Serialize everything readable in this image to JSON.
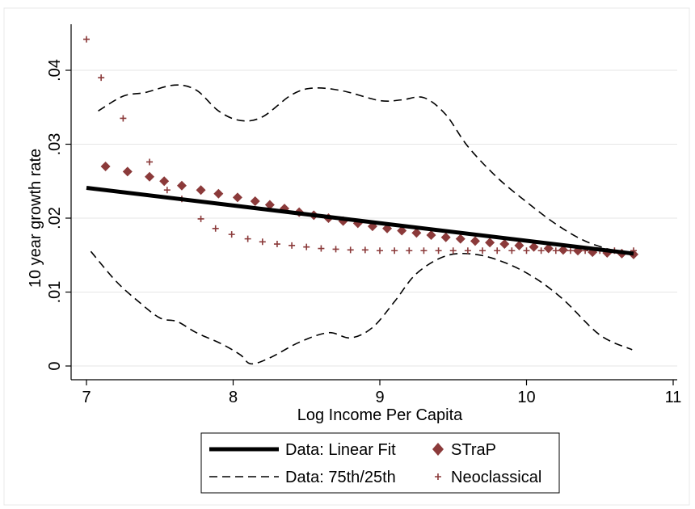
{
  "chart_data": {
    "type": "line",
    "xlabel": "Log Income Per Capita",
    "ylabel": "10 year growth rate",
    "xlim": [
      7,
      11
    ],
    "ylim": [
      0,
      0.04
    ],
    "xticks": [
      {
        "value": 7,
        "label": "7"
      },
      {
        "value": 8,
        "label": "8"
      },
      {
        "value": 9,
        "label": "9"
      },
      {
        "value": 10,
        "label": "10"
      },
      {
        "value": 11,
        "label": "11"
      }
    ],
    "yticks": [
      {
        "value": 0,
        "label": "0"
      },
      {
        "value": 0.01,
        "label": ".01"
      },
      {
        "value": 0.02,
        "label": ".02"
      },
      {
        "value": 0.03,
        "label": ".03"
      },
      {
        "value": 0.04,
        "label": ".04"
      }
    ],
    "grid": "horizontal",
    "legend_position": "bottom",
    "series": [
      {
        "name": "Data: Linear Fit",
        "style": "solid-thick",
        "color": "#000000",
        "x": [
          7.0,
          10.73
        ],
        "y": [
          0.0241,
          0.0152
        ]
      },
      {
        "name": "Data: 75th/25th",
        "style": "dashed",
        "color": "#000000",
        "bands": [
          {
            "x": [
              7.08,
              7.25,
              7.4,
              7.6,
              7.75,
              7.9,
              8.05,
              8.2,
              8.4,
              8.55,
              8.75,
              9.0,
              9.15,
              9.3,
              9.45,
              9.6,
              9.8,
              10.0,
              10.2,
              10.4,
              10.6,
              10.72
            ],
            "y": [
              0.0345,
              0.0365,
              0.037,
              0.038,
              0.0373,
              0.0345,
              0.0332,
              0.0337,
              0.0367,
              0.0376,
              0.0372,
              0.0359,
              0.036,
              0.0363,
              0.034,
              0.0297,
              0.0255,
              0.0222,
              0.0192,
              0.0169,
              0.0156,
              0.0152
            ]
          },
          {
            "x": [
              7.03,
              7.2,
              7.35,
              7.5,
              7.62,
              7.75,
              7.92,
              8.05,
              8.12,
              8.25,
              8.45,
              8.65,
              8.8,
              8.95,
              9.1,
              9.25,
              9.45,
              9.65,
              9.85,
              10.05,
              10.25,
              10.5,
              10.72
            ],
            "y": [
              0.0155,
              0.0115,
              0.0088,
              0.0065,
              0.006,
              0.0045,
              0.003,
              0.0015,
              0.0003,
              0.0011,
              0.0032,
              0.0045,
              0.0038,
              0.0052,
              0.0087,
              0.0125,
              0.0149,
              0.0151,
              0.014,
              0.012,
              0.009,
              0.0042,
              0.0022
            ]
          }
        ]
      },
      {
        "name": "STraP",
        "marker": "diamond",
        "color": "#8b3a3a",
        "x": [
          7.13,
          7.28,
          7.43,
          7.53,
          7.65,
          7.78,
          7.9,
          8.03,
          8.15,
          8.25,
          8.35,
          8.45,
          8.55,
          8.65,
          8.75,
          8.85,
          8.95,
          9.05,
          9.15,
          9.25,
          9.35,
          9.45,
          9.55,
          9.65,
          9.75,
          9.85,
          9.95,
          10.05,
          10.15,
          10.25,
          10.35,
          10.45,
          10.55,
          10.65,
          10.73
        ],
        "y": [
          0.027,
          0.0263,
          0.0256,
          0.025,
          0.0244,
          0.0238,
          0.0233,
          0.0228,
          0.0223,
          0.0218,
          0.0213,
          0.0208,
          0.0204,
          0.02,
          0.0196,
          0.0193,
          0.0189,
          0.0186,
          0.0183,
          0.018,
          0.0177,
          0.0174,
          0.0172,
          0.0169,
          0.0167,
          0.0165,
          0.0163,
          0.0161,
          0.0159,
          0.0157,
          0.0156,
          0.0154,
          0.0153,
          0.0152,
          0.0151
        ]
      },
      {
        "name": "Neoclassical",
        "marker": "plus",
        "color": "#8b3a3a",
        "x": [
          7.0,
          7.1,
          7.25,
          7.43,
          7.55,
          7.65,
          7.78,
          7.88,
          7.99,
          8.1,
          8.2,
          8.3,
          8.4,
          8.5,
          8.6,
          8.7,
          8.8,
          8.9,
          9.0,
          9.1,
          9.2,
          9.3,
          9.4,
          9.5,
          9.6,
          9.7,
          9.8,
          9.9,
          10.0,
          10.1,
          10.2,
          10.3,
          10.4,
          10.5,
          10.6,
          10.73
        ],
        "y": [
          0.0442,
          0.039,
          0.0335,
          0.0276,
          0.0238,
          0.0226,
          0.0199,
          0.0186,
          0.0178,
          0.0172,
          0.0168,
          0.0165,
          0.0163,
          0.0161,
          0.0159,
          0.0158,
          0.0157,
          0.0157,
          0.0156,
          0.0156,
          0.0156,
          0.0156,
          0.0156,
          0.0156,
          0.0156,
          0.0156,
          0.0156,
          0.0156,
          0.0156,
          0.0156,
          0.0156,
          0.0156,
          0.0156,
          0.0156,
          0.0156,
          0.0156
        ]
      }
    ]
  }
}
